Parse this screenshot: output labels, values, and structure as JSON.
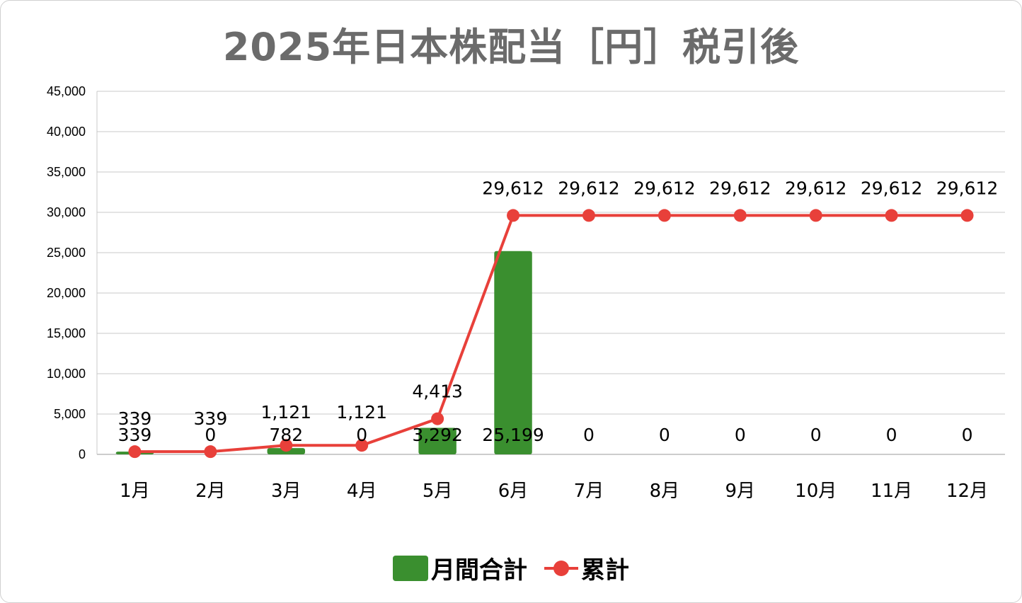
{
  "chart_data": {
    "type": "bar",
    "title": "2025年日本株配当［円］税引後",
    "categories": [
      "1月",
      "2月",
      "3月",
      "4月",
      "5月",
      "6月",
      "7月",
      "8月",
      "9月",
      "10月",
      "11月",
      "12月"
    ],
    "ylim": [
      0,
      45000
    ],
    "yticks": [
      0,
      5000,
      10000,
      15000,
      20000,
      25000,
      30000,
      35000,
      40000,
      45000
    ],
    "ytick_labels": [
      "0",
      "5,000",
      "10,000",
      "15,000",
      "20,000",
      "25,000",
      "30,000",
      "35,000",
      "40,000",
      "45,000"
    ],
    "grid": true,
    "legend_placement": "bottom",
    "series": [
      {
        "name": "月間合計",
        "type": "bar",
        "color": "#3a8f2f",
        "values": [
          339,
          0,
          782,
          0,
          3292,
          25199,
          0,
          0,
          0,
          0,
          0,
          0
        ],
        "labels": [
          "339",
          "0",
          "782",
          "0",
          "3,292",
          "25,199",
          "0",
          "0",
          "0",
          "0",
          "0",
          "0"
        ]
      },
      {
        "name": "累計",
        "type": "line",
        "color": "#e8403a",
        "values": [
          339,
          339,
          1121,
          1121,
          4413,
          29612,
          29612,
          29612,
          29612,
          29612,
          29612,
          29612
        ],
        "labels": [
          "339",
          "339",
          "1,121",
          "1,121",
          "4,413",
          "29,612",
          "29,612",
          "29,612",
          "29,612",
          "29,612",
          "29,612",
          "29,612"
        ]
      }
    ]
  }
}
